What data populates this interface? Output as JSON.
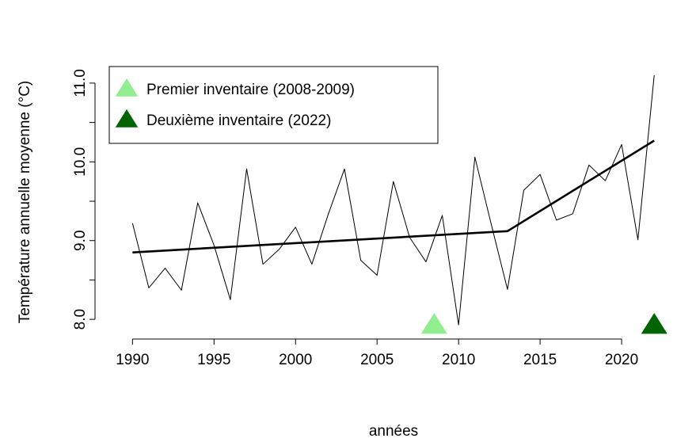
{
  "chart_data": {
    "type": "line",
    "x_label": "années",
    "y_label": "Température annuelle moyenne (°C)",
    "xlim": [
      1987.7,
      2023.3
    ],
    "ylim": [
      7.75,
      11.15
    ],
    "xticks": [
      1990,
      1995,
      2000,
      2005,
      2010,
      2015,
      2020
    ],
    "yticks": [
      {
        "value": 8,
        "label": "8.0"
      },
      {
        "value": 9,
        "label": "9.0"
      },
      {
        "value": 10,
        "label": "10.0"
      },
      {
        "value": 11,
        "label": "11.0"
      }
    ],
    "yticks_minor": [
      8.5,
      9.5,
      10.5
    ],
    "series": [
      {
        "color": "#000000",
        "width": 1,
        "x": [
          1990,
          1991,
          1992,
          1993,
          1994,
          1995,
          1996,
          1997,
          1998,
          1999,
          2000,
          2001,
          2002,
          2003,
          2004,
          2005,
          2006,
          2007,
          2008,
          2009,
          2010,
          2011,
          2012,
          2013,
          2014,
          2015,
          2016,
          2017,
          2018,
          2019,
          2020,
          2021,
          2022
        ],
        "values": [
          9.22,
          8.4,
          8.65,
          8.37,
          9.48,
          8.94,
          8.25,
          9.91,
          8.7,
          8.89,
          9.17,
          8.7,
          9.33,
          9.91,
          8.75,
          8.56,
          9.75,
          9.04,
          8.73,
          9.32,
          7.93,
          10.06,
          9.21,
          8.38,
          9.64,
          9.84,
          9.26,
          9.34,
          9.96,
          9.76,
          10.22,
          9.01,
          11.1
        ]
      },
      {
        "color": "#000000",
        "width": 2.6,
        "x": [
          1990,
          2013,
          2022
        ],
        "values": [
          8.85,
          9.12,
          10.27
        ]
      }
    ],
    "markers": [
      {
        "name": "Premier inventaire (2008-2009)",
        "x": 2008.5,
        "y": 7.93,
        "color": "#90ee90"
      },
      {
        "name": "Deuxième inventaire (2022)",
        "x": 2022,
        "y": 7.93,
        "color": "#006400"
      }
    ],
    "legend": "topleft"
  }
}
